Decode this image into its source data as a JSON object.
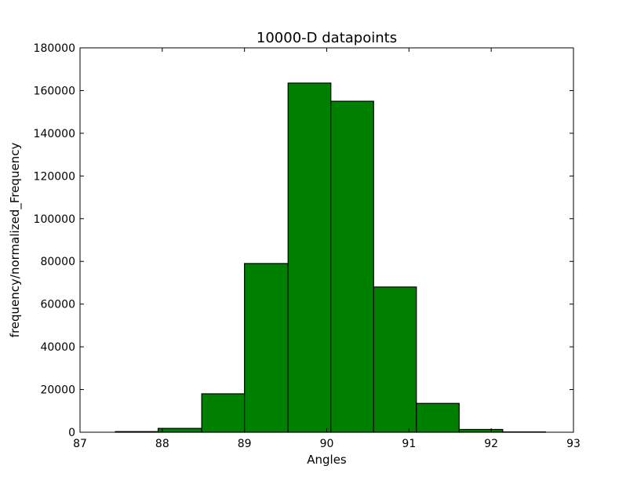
{
  "chart_data": {
    "type": "bar",
    "title": "10000-D datapoints",
    "xlabel": "Angles",
    "ylabel": "frequency/normalized_Frequency",
    "xlim": [
      87,
      93
    ],
    "ylim": [
      0,
      180000
    ],
    "xticks": [
      "87",
      "88",
      "89",
      "90",
      "91",
      "92",
      "93"
    ],
    "yticks": [
      "0",
      "20000",
      "40000",
      "60000",
      "80000",
      "100000",
      "120000",
      "140000",
      "160000",
      "180000"
    ],
    "grid": false,
    "bar_color": "#008000",
    "edge_color": "#000000",
    "bins": [
      {
        "x0": 87.43,
        "x1": 87.95,
        "value": 300
      },
      {
        "x0": 87.95,
        "x1": 88.48,
        "value": 1800
      },
      {
        "x0": 88.48,
        "x1": 89.0,
        "value": 18000
      },
      {
        "x0": 89.0,
        "x1": 89.53,
        "value": 79000
      },
      {
        "x0": 89.53,
        "x1": 90.05,
        "value": 163500
      },
      {
        "x0": 90.05,
        "x1": 90.57,
        "value": 155000
      },
      {
        "x0": 90.57,
        "x1": 91.09,
        "value": 68000
      },
      {
        "x0": 91.09,
        "x1": 91.61,
        "value": 13500
      },
      {
        "x0": 91.61,
        "x1": 92.14,
        "value": 1300
      },
      {
        "x0": 92.14,
        "x1": 92.66,
        "value": 150
      }
    ]
  }
}
